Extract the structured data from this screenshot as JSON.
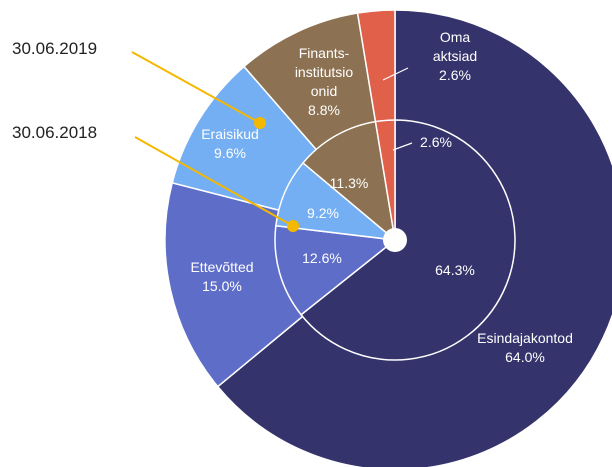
{
  "chart_data": {
    "type": "pie",
    "categories": [
      "Esindajakontod",
      "Ettevõtted",
      "Eraisikud",
      "Finants-\ninstitutsio\nonid",
      "Oma\naktsiad"
    ],
    "colors": [
      "#35336b",
      "#5e6dc8",
      "#74aef3",
      "#8c7152",
      "#e0604a"
    ],
    "series": [
      {
        "name": "30.06.2019",
        "values": [
          64.0,
          15.0,
          9.6,
          8.8,
          2.6
        ],
        "value_labels": [
          "64.0%",
          "15.0%",
          "9.6%",
          "8.8%",
          "2.6%"
        ]
      },
      {
        "name": "30.06.2018",
        "values": [
          64.3,
          12.6,
          9.2,
          11.3,
          2.6
        ],
        "value_labels": [
          "64.3%",
          "12.6%",
          "9.2%",
          "11.3%",
          "2.6%"
        ]
      }
    ]
  }
}
